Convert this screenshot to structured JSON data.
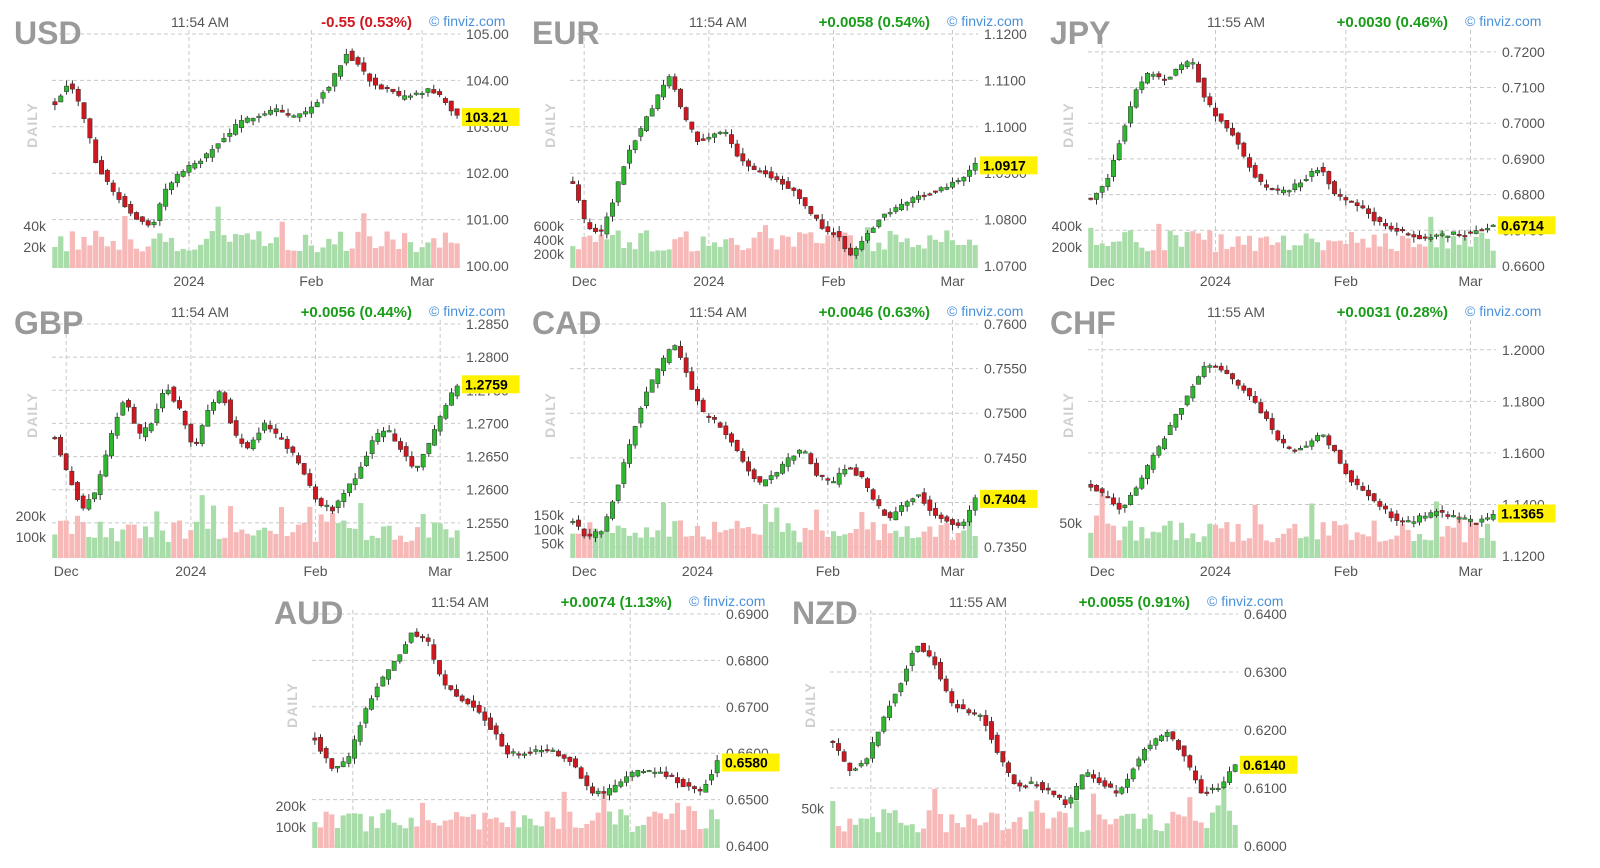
{
  "colors": {
    "up": "#2fb52f",
    "down": "#d0161e",
    "vol_up": "#a8dca8",
    "vol_down": "#f7b8b8",
    "grid": "#c8c8c8",
    "last_bg": "#fff200",
    "pos": "#1a9c1a",
    "neg": "#d0161e"
  },
  "chart_data": [
    {
      "type": "candlestick",
      "symbol": "USD",
      "time": "11:54 AM",
      "change": "-0.55 (0.53%)",
      "direction": "down",
      "brand": "© finviz.com",
      "timeframe_label": "DAILY",
      "last": "103.21",
      "last_value": 103.21,
      "ylim": [
        100.0,
        105.0
      ],
      "yticks": [
        "100.00",
        "101.00",
        "102.00",
        "103.00",
        "104.00",
        "105.00"
      ],
      "vol_ticks": [
        "20k",
        "40k"
      ],
      "vol_max": 60,
      "vol_tick_values": [
        20,
        40
      ],
      "xticks": [
        {
          "label": "2024",
          "idx": 23
        },
        {
          "label": "Feb",
          "idx": 44
        },
        {
          "label": "Mar",
          "idx": 63
        }
      ],
      "count": 70,
      "path": [
        103.5,
        104.0,
        103.3,
        102.2,
        101.7,
        101.3,
        101.0,
        100.8,
        101.7,
        102.0,
        102.2,
        102.4,
        102.7,
        103.0,
        103.2,
        103.3,
        103.4,
        103.2,
        103.3,
        103.6,
        104.0,
        104.6,
        104.3,
        103.9,
        103.8,
        103.6,
        103.7,
        103.8,
        103.6,
        103.2
      ]
    },
    {
      "type": "candlestick",
      "symbol": "EUR",
      "time": "11:54 AM",
      "change": "+0.0058 (0.54%)",
      "direction": "up",
      "brand": "© finviz.com",
      "timeframe_label": "DAILY",
      "last": "1.0917",
      "last_value": 1.0917,
      "ylim": [
        1.07,
        1.12
      ],
      "yticks": [
        "1.0700",
        "1.0800",
        "1.0900",
        "1.1000",
        "1.1100",
        "1.1200"
      ],
      "vol_ticks": [
        "200k",
        "400k",
        "600k"
      ],
      "vol_max": 900,
      "vol_tick_values": [
        200,
        400,
        600
      ],
      "xticks": [
        {
          "label": "Dec",
          "idx": 2
        },
        {
          "label": "2024",
          "idx": 24
        },
        {
          "label": "Feb",
          "idx": 46
        },
        {
          "label": "Mar",
          "idx": 67
        }
      ],
      "count": 72,
      "path": [
        1.088,
        1.078,
        1.077,
        1.085,
        1.095,
        1.1,
        1.106,
        1.111,
        1.102,
        1.097,
        1.098,
        1.099,
        1.093,
        1.091,
        1.09,
        1.088,
        1.086,
        1.082,
        1.078,
        1.077,
        1.072,
        1.076,
        1.08,
        1.082,
        1.084,
        1.085,
        1.086,
        1.087,
        1.089,
        1.0917
      ]
    },
    {
      "type": "candlestick",
      "symbol": "JPY",
      "time": "11:55 AM",
      "change": "+0.0030 (0.46%)",
      "direction": "up",
      "brand": "© finviz.com",
      "timeframe_label": "DAILY",
      "last": "0.6714",
      "last_value": 0.6714,
      "ylim": [
        0.66,
        0.725
      ],
      "yticks": [
        "0.6600",
        "0.6700",
        "0.6800",
        "0.6900",
        "0.7000",
        "0.7100",
        "0.7200"
      ],
      "vol_ticks": [
        "200k",
        "400k"
      ],
      "vol_max": 600,
      "vol_tick_values": [
        200,
        400
      ],
      "xticks": [
        {
          "label": "Dec",
          "idx": 2
        },
        {
          "label": "2024",
          "idx": 22
        },
        {
          "label": "Feb",
          "idx": 45
        },
        {
          "label": "Mar",
          "idx": 67
        }
      ],
      "count": 72,
      "path": [
        0.679,
        0.683,
        0.695,
        0.708,
        0.714,
        0.712,
        0.715,
        0.718,
        0.706,
        0.701,
        0.696,
        0.688,
        0.682,
        0.681,
        0.682,
        0.685,
        0.688,
        0.68,
        0.678,
        0.676,
        0.672,
        0.67,
        0.669,
        0.668,
        0.668,
        0.669,
        0.669,
        0.67,
        0.6714
      ]
    },
    {
      "type": "candlestick",
      "symbol": "GBP",
      "time": "11:54 AM",
      "change": "+0.0056 (0.44%)",
      "direction": "up",
      "brand": "© finviz.com",
      "timeframe_label": "DAILY",
      "last": "1.2759",
      "last_value": 1.2759,
      "ylim": [
        1.25,
        1.285
      ],
      "yticks": [
        "1.2500",
        "1.2550",
        "1.2600",
        "1.2650",
        "1.2700",
        "1.2750",
        "1.2800",
        "1.2850"
      ],
      "vol_ticks": [
        "100k",
        "200k"
      ],
      "vol_max": 300,
      "vol_tick_values": [
        100,
        200
      ],
      "xticks": [
        {
          "label": "Dec",
          "idx": 2
        },
        {
          "label": "2024",
          "idx": 24
        },
        {
          "label": "Feb",
          "idx": 46
        },
        {
          "label": "Mar",
          "idx": 68
        }
      ],
      "count": 72,
      "path": [
        1.268,
        1.262,
        1.257,
        1.26,
        1.268,
        1.274,
        1.268,
        1.27,
        1.276,
        1.272,
        1.266,
        1.272,
        1.275,
        1.268,
        1.266,
        1.27,
        1.268,
        1.266,
        1.262,
        1.258,
        1.257,
        1.26,
        1.263,
        1.268,
        1.269,
        1.266,
        1.263,
        1.267,
        1.272,
        1.2759
      ]
    },
    {
      "type": "candlestick",
      "symbol": "CAD",
      "time": "11:54 AM",
      "change": "+0.0046 (0.63%)",
      "direction": "up",
      "brand": "© finviz.com",
      "timeframe_label": "DAILY",
      "last": "0.7404",
      "last_value": 0.7404,
      "ylim": [
        0.734,
        0.76
      ],
      "yticks": [
        "0.7350",
        "0.7400",
        "0.7450",
        "0.7500",
        "0.7550",
        "0.7600"
      ],
      "vol_ticks": [
        "50k",
        "100k",
        "150k"
      ],
      "vol_max": 220,
      "vol_tick_values": [
        50,
        100,
        150
      ],
      "xticks": [
        {
          "label": "Dec",
          "idx": 2
        },
        {
          "label": "2024",
          "idx": 22
        },
        {
          "label": "Feb",
          "idx": 45
        },
        {
          "label": "Mar",
          "idx": 67
        }
      ],
      "count": 72,
      "path": [
        0.738,
        0.736,
        0.737,
        0.741,
        0.747,
        0.752,
        0.755,
        0.758,
        0.754,
        0.75,
        0.749,
        0.747,
        0.744,
        0.742,
        0.743,
        0.745,
        0.746,
        0.743,
        0.742,
        0.744,
        0.743,
        0.74,
        0.738,
        0.74,
        0.741,
        0.739,
        0.738,
        0.737,
        0.7404
      ]
    },
    {
      "type": "candlestick",
      "symbol": "CHF",
      "time": "11:55 AM",
      "change": "+0.0031 (0.28%)",
      "direction": "up",
      "brand": "© finviz.com",
      "timeframe_label": "DAILY",
      "last": "1.1365",
      "last_value": 1.1365,
      "ylim": [
        1.12,
        1.21
      ],
      "yticks": [
        "1.1200",
        "1.1400",
        "1.1600",
        "1.1800",
        "1.2000"
      ],
      "vol_ticks": [
        "50k"
      ],
      "vol_max": 90,
      "vol_tick_values": [
        50
      ],
      "xticks": [
        {
          "label": "Dec",
          "idx": 2
        },
        {
          "label": "2024",
          "idx": 22
        },
        {
          "label": "Feb",
          "idx": 45
        },
        {
          "label": "Mar",
          "idx": 67
        }
      ],
      "count": 72,
      "path": [
        1.147,
        1.143,
        1.138,
        1.145,
        1.155,
        1.165,
        1.175,
        1.185,
        1.195,
        1.193,
        1.188,
        1.183,
        1.175,
        1.165,
        1.16,
        1.163,
        1.168,
        1.16,
        1.15,
        1.145,
        1.14,
        1.135,
        1.133,
        1.135,
        1.137,
        1.136,
        1.134,
        1.133,
        1.1365
      ]
    },
    {
      "type": "candlestick",
      "symbol": "AUD",
      "time": "11:54 AM",
      "change": "+0.0074 (1.13%)",
      "direction": "up",
      "brand": "© finviz.com",
      "timeframe_label": "DAILY",
      "last": "0.6580",
      "last_value": 0.658,
      "ylim": [
        0.64,
        0.69
      ],
      "yticks": [
        "0.6400",
        "0.6500",
        "0.6600",
        "0.6700",
        "0.6800",
        "0.6900"
      ],
      "vol_ticks": [
        "100k",
        "200k"
      ],
      "vol_max": 300,
      "vol_tick_values": [
        100,
        200
      ],
      "xticks": [],
      "count": 72,
      "path": [
        0.663,
        0.657,
        0.658,
        0.668,
        0.675,
        0.68,
        0.686,
        0.684,
        0.675,
        0.672,
        0.67,
        0.665,
        0.66,
        0.66,
        0.661,
        0.66,
        0.658,
        0.652,
        0.651,
        0.654,
        0.656,
        0.656,
        0.655,
        0.653,
        0.652,
        0.658
      ]
    },
    {
      "type": "candlestick",
      "symbol": "NZD",
      "time": "11:55 AM",
      "change": "+0.0055 (0.91%)",
      "direction": "up",
      "brand": "© finviz.com",
      "timeframe_label": "DAILY",
      "last": "0.6140",
      "last_value": 0.614,
      "ylim": [
        0.6,
        0.64
      ],
      "yticks": [
        "0.6000",
        "0.6100",
        "0.6200",
        "0.6300",
        "0.6400"
      ],
      "vol_ticks": [
        "50k"
      ],
      "vol_max": 80,
      "vol_tick_values": [
        50
      ],
      "xticks": [],
      "count": 72,
      "path": [
        0.618,
        0.613,
        0.615,
        0.622,
        0.628,
        0.635,
        0.632,
        0.625,
        0.623,
        0.622,
        0.615,
        0.61,
        0.611,
        0.609,
        0.607,
        0.613,
        0.611,
        0.609,
        0.614,
        0.618,
        0.62,
        0.615,
        0.609,
        0.61,
        0.614
      ]
    }
  ]
}
